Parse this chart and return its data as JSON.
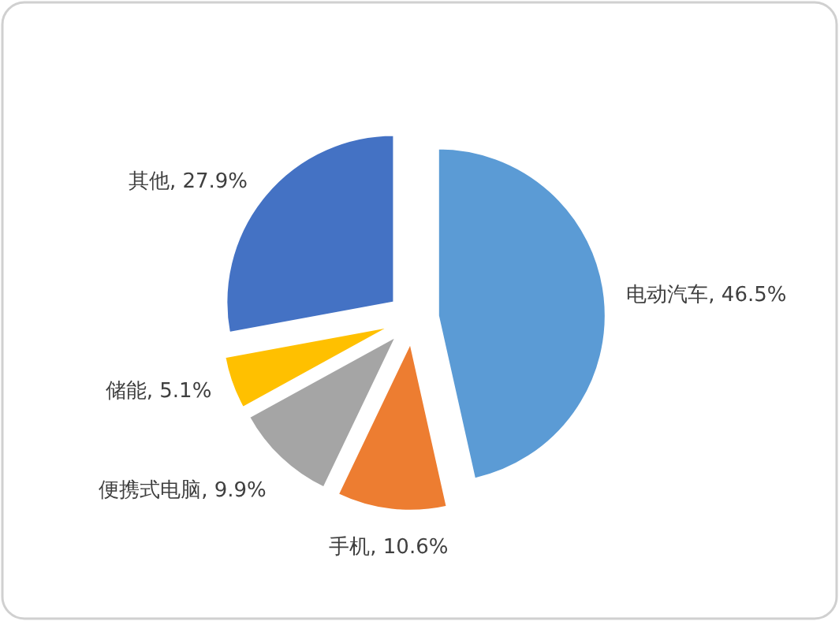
{
  "chart_data": {
    "type": "pie",
    "categories": [
      "电动汽车",
      "手机",
      "便携式电脑",
      "储能",
      "其他"
    ],
    "values": [
      46.5,
      10.6,
      9.9,
      5.1,
      27.9
    ],
    "value_labels": [
      "46.5%",
      "10.6%",
      "9.9%",
      "5.1%",
      "27.9%"
    ],
    "colors": [
      "#5b9bd5",
      "#ed7d31",
      "#a5a5a5",
      "#ffc000",
      "#4472c4"
    ]
  }
}
